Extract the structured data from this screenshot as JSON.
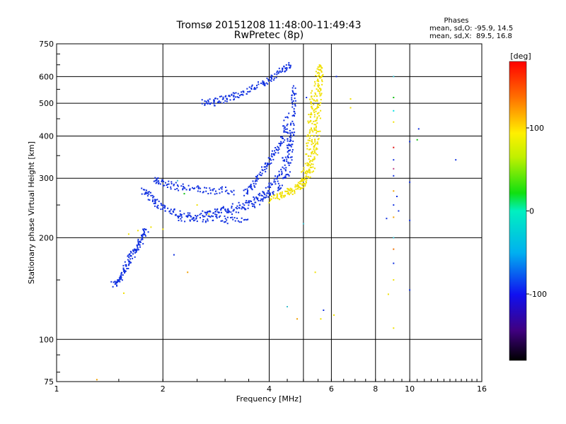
{
  "chart_data": {
    "type": "scatter",
    "title": "Tromsø 20151208 11:48:00-11:49:43",
    "subtitle": "RwPretec (8p)",
    "xlabel": "Frequency [MHz]",
    "ylabel": "Stationary phase Virtual Height [km]",
    "x_scale": "log2",
    "y_scale": "log",
    "xlim": [
      1,
      16
    ],
    "ylim": [
      75,
      750
    ],
    "x_ticks": [
      1,
      2,
      4,
      6,
      8,
      10,
      16
    ],
    "x_tick_labels": [
      "1",
      "2",
      "4",
      "6",
      "8",
      "10",
      "16"
    ],
    "x_gridlines": [
      2,
      4,
      5,
      6,
      8,
      10
    ],
    "y_ticks": [
      75,
      100,
      200,
      300,
      400,
      500,
      600,
      750
    ],
    "y_tick_labels": [
      "75",
      "100",
      "200",
      "300",
      "400",
      "500",
      "600",
      "750"
    ],
    "y_gridlines": [
      100,
      200,
      300,
      400,
      500,
      600
    ],
    "phases": {
      "heading": "Phases",
      "line_o": "mean, sd,O: -95.9, 14.5",
      "line_x": "mean, sd,X:  89.5, 16.8"
    },
    "colorbar": {
      "label": "[deg]",
      "range": [
        -180,
        180
      ],
      "ticks": [
        100,
        0,
        -100
      ],
      "tick_labels": [
        "100",
        "0",
        "-100"
      ]
    },
    "series": [
      {
        "phase_class": "O",
        "color": "#1030e0",
        "traces": [
          {
            "points": [
              [
                1.45,
                145
              ],
              [
                1.5,
                150
              ],
              [
                1.55,
                160
              ],
              [
                1.6,
                170
              ],
              [
                1.65,
                180
              ],
              [
                1.7,
                190
              ],
              [
                1.75,
                200
              ],
              [
                1.8,
                215
              ]
            ]
          },
          {
            "points": [
              [
                1.75,
                275
              ],
              [
                1.85,
                262
              ],
              [
                1.95,
                250
              ],
              [
                2.1,
                240
              ],
              [
                2.3,
                232
              ],
              [
                2.6,
                228
              ],
              [
                3.0,
                226
              ],
              [
                3.5,
                225
              ]
            ]
          },
          {
            "points": [
              [
                1.9,
                300
              ],
              [
                2.0,
                290
              ],
              [
                2.2,
                283
              ],
              [
                2.5,
                278
              ],
              [
                2.8,
                276
              ],
              [
                3.2,
                275
              ]
            ]
          },
          {
            "points": [
              [
                2.2,
                228
              ],
              [
                2.6,
                232
              ],
              [
                3.0,
                238
              ],
              [
                3.4,
                245
              ],
              [
                3.8,
                258
              ],
              [
                4.2,
                275
              ],
              [
                4.5,
                310
              ],
              [
                4.6,
                360
              ],
              [
                4.65,
                420
              ],
              [
                4.7,
                500
              ],
              [
                4.7,
                560
              ]
            ]
          },
          {
            "points": [
              [
                2.6,
                235
              ],
              [
                3.0,
                242
              ],
              [
                3.4,
                252
              ],
              [
                3.8,
                265
              ],
              [
                4.0,
                280
              ],
              [
                4.3,
                310
              ],
              [
                4.5,
                360
              ],
              [
                4.6,
                420
              ]
            ]
          },
          {
            "points": [
              [
                2.6,
                500
              ],
              [
                2.8,
                505
              ],
              [
                3.0,
                515
              ],
              [
                3.2,
                525
              ],
              [
                3.5,
                545
              ],
              [
                3.8,
                570
              ],
              [
                4.1,
                595
              ],
              [
                4.4,
                630
              ],
              [
                4.6,
                650
              ]
            ]
          },
          {
            "points": [
              [
                3.4,
                270
              ],
              [
                3.6,
                285
              ],
              [
                3.8,
                310
              ],
              [
                4.0,
                340
              ],
              [
                4.2,
                360
              ],
              [
                4.4,
                400
              ],
              [
                4.5,
                460
              ]
            ]
          }
        ]
      },
      {
        "phase_class": "X",
        "color": "#f0e000",
        "traces": [
          {
            "points": [
              [
                4.0,
                260
              ],
              [
                4.4,
                268
              ],
              [
                4.8,
                280
              ],
              [
                5.1,
                300
              ],
              [
                5.25,
                340
              ],
              [
                5.35,
                400
              ],
              [
                5.4,
                480
              ],
              [
                5.45,
                560
              ],
              [
                5.5,
                640
              ]
            ]
          },
          {
            "points": [
              [
                4.2,
                265
              ],
              [
                4.6,
                275
              ],
              [
                5.0,
                290
              ],
              [
                5.3,
                320
              ],
              [
                5.45,
                370
              ],
              [
                5.5,
                430
              ],
              [
                5.55,
                520
              ],
              [
                5.6,
                600
              ],
              [
                5.6,
                650
              ]
            ]
          },
          {
            "points": [
              [
                4.9,
                280
              ],
              [
                5.1,
                330
              ],
              [
                5.2,
                400
              ],
              [
                5.25,
                470
              ],
              [
                5.3,
                540
              ]
            ]
          }
        ]
      },
      {
        "phase_class": "scattered",
        "points": [
          [
            9.0,
            600,
            "#40c0d0"
          ],
          [
            9.0,
            520,
            "#10c010"
          ],
          [
            9.0,
            475,
            "#00e0e0"
          ],
          [
            9.0,
            440,
            "#f0e000"
          ],
          [
            9.0,
            370,
            "#e01010"
          ],
          [
            9.0,
            340,
            "#1030e0"
          ],
          [
            9.0,
            320,
            "#c04080"
          ],
          [
            9.0,
            305,
            "#1030e0"
          ],
          [
            9.0,
            275,
            "#f0a000"
          ],
          [
            9.0,
            250,
            "#1030e0"
          ],
          [
            9.0,
            230,
            "#f0a000"
          ],
          [
            9.0,
            200,
            "#40c0d0"
          ],
          [
            9.0,
            185,
            "#f07000"
          ],
          [
            9.0,
            168,
            "#1030e0"
          ],
          [
            9.0,
            150,
            "#f0e000"
          ],
          [
            9.0,
            108,
            "#f0e000"
          ],
          [
            8.6,
            228,
            "#1030e0"
          ],
          [
            8.7,
            136,
            "#f0e000"
          ],
          [
            9.3,
            240,
            "#1030e0"
          ],
          [
            9.2,
            265,
            "#1030e0"
          ],
          [
            10.0,
            385,
            "#1030e0"
          ],
          [
            10.0,
            292,
            "#1030e0"
          ],
          [
            10.0,
            225,
            "#1030e0"
          ],
          [
            10.0,
            140,
            "#1030e0"
          ],
          [
            10.6,
            420,
            "#1030e0"
          ],
          [
            10.5,
            390,
            "#10c010"
          ],
          [
            13.5,
            340,
            "#1030e0"
          ],
          [
            6.8,
            515,
            "#f0e000"
          ],
          [
            6.8,
            485,
            "#f0e000"
          ],
          [
            6.1,
            118,
            "#f0e000"
          ],
          [
            6.2,
            600,
            "#1030e0"
          ],
          [
            5.7,
            122,
            "#1030e0"
          ],
          [
            5.6,
            115,
            "#f0e000"
          ],
          [
            5.4,
            158,
            "#f0e000"
          ],
          [
            5.0,
            220,
            "#40c0d0"
          ],
          [
            5.1,
            520,
            "#1030e0"
          ],
          [
            4.8,
            115,
            "#f0a000"
          ],
          [
            4.5,
            125,
            "#40c0d0"
          ],
          [
            2.35,
            158,
            "#f0a000"
          ],
          [
            2.15,
            178,
            "#1030e0"
          ],
          [
            1.55,
            137,
            "#f0e000"
          ],
          [
            1.3,
            76,
            "#f0a000"
          ],
          [
            2.7,
            235,
            "#f0e000"
          ],
          [
            2.5,
            250,
            "#f0e000"
          ],
          [
            2.3,
            270,
            "#10c010"
          ],
          [
            2.2,
            295,
            "#40c0d0"
          ],
          [
            1.6,
            205,
            "#f0e000"
          ],
          [
            1.7,
            210,
            "#f0e000"
          ],
          [
            1.85,
            215,
            "#f0e000"
          ],
          [
            2.0,
            212,
            "#f0e000"
          ]
        ]
      }
    ]
  }
}
